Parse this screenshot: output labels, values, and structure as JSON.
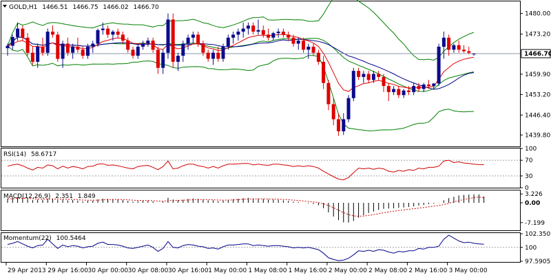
{
  "window": {
    "title": "GOLD,H1",
    "ohlc": [
      "1466.51",
      "1466.75",
      "1466.02",
      "1466.70"
    ]
  },
  "chart_data": [
    {
      "type": "candlestick",
      "panel": "price",
      "symbol": "GOLD",
      "timeframe": "H1",
      "ylim": [
        1436,
        1484
      ],
      "yticks": [
        "1480.00",
        "1473.20",
        "1466.70",
        "1459.90",
        "1453.20",
        "1446.40",
        "1439.80"
      ],
      "current_price": "1466.70",
      "colors": {
        "up": "#0b0b8c",
        "down": "#e00000",
        "ma_fast": "#e00000",
        "ma_slow": "#00008b",
        "bollinger": "#008000",
        "price_line": "#8a96a8"
      },
      "xticks": [
        "29 Apr 2013",
        "29 Apr 16:00",
        "30 Apr 00:00",
        "30 Apr 08:00",
        "30 Apr 16:00",
        "1 May 00:00",
        "1 May 08:00",
        "1 May 16:00",
        "2 May 00:00",
        "2 May 08:00",
        "2 May 16:00",
        "3 May 00:00"
      ],
      "candles": [
        [
          1468.5,
          1470,
          1466,
          1469.3
        ],
        [
          1469.3,
          1473,
          1468,
          1472.2
        ],
        [
          1472.2,
          1477,
          1471,
          1475
        ],
        [
          1475,
          1476,
          1471,
          1472
        ],
        [
          1472,
          1473.5,
          1466,
          1467
        ],
        [
          1467,
          1469,
          1463,
          1464
        ],
        [
          1464,
          1470,
          1462,
          1469
        ],
        [
          1469,
          1472,
          1466,
          1467
        ],
        [
          1467,
          1475,
          1466,
          1474
        ],
        [
          1474,
          1476,
          1472,
          1473
        ],
        [
          1473,
          1474,
          1464,
          1465
        ],
        [
          1465,
          1471,
          1462,
          1470
        ],
        [
          1470,
          1472,
          1466,
          1467
        ],
        [
          1467,
          1470,
          1465,
          1469
        ],
        [
          1469,
          1472,
          1467,
          1468
        ],
        [
          1468,
          1469,
          1465,
          1466
        ],
        [
          1466,
          1470,
          1465,
          1469
        ],
        [
          1469,
          1471,
          1467,
          1470
        ],
        [
          1470,
          1475,
          1469,
          1474.5
        ],
        [
          1474.5,
          1477,
          1473,
          1475
        ],
        [
          1475,
          1476,
          1472,
          1473
        ],
        [
          1473,
          1474.5,
          1471,
          1474
        ],
        [
          1474,
          1475,
          1472,
          1473
        ],
        [
          1473,
          1474,
          1470,
          1471
        ],
        [
          1471,
          1472,
          1467,
          1468
        ],
        [
          1468,
          1469,
          1465,
          1466
        ],
        [
          1466,
          1470,
          1465,
          1469
        ],
        [
          1469,
          1471,
          1468,
          1470
        ],
        [
          1470,
          1472,
          1469,
          1471
        ],
        [
          1471,
          1472,
          1467,
          1468
        ],
        [
          1468,
          1469,
          1460,
          1462
        ],
        [
          1462,
          1468,
          1460,
          1467
        ],
        [
          1467,
          1480,
          1465,
          1478
        ],
        [
          1478,
          1480,
          1462,
          1464
        ],
        [
          1464,
          1467,
          1461,
          1466
        ],
        [
          1466,
          1471,
          1464,
          1470
        ],
        [
          1470,
          1473,
          1468,
          1472
        ],
        [
          1472,
          1474,
          1470,
          1473
        ],
        [
          1473,
          1474,
          1469,
          1470
        ],
        [
          1470,
          1471,
          1466,
          1467
        ],
        [
          1467,
          1468,
          1464,
          1465
        ],
        [
          1465,
          1468,
          1463,
          1467
        ],
        [
          1467,
          1469,
          1464,
          1465
        ],
        [
          1465,
          1470,
          1464,
          1469
        ],
        [
          1469,
          1473,
          1468,
          1472
        ],
        [
          1472,
          1474,
          1470,
          1473
        ],
        [
          1473,
          1475,
          1471,
          1474
        ],
        [
          1474,
          1477,
          1472,
          1475
        ],
        [
          1475,
          1477,
          1473,
          1476
        ],
        [
          1476,
          1477,
          1473,
          1474
        ],
        [
          1474,
          1478,
          1473,
          1474.5
        ],
        [
          1474.5,
          1476,
          1472,
          1473
        ],
        [
          1473,
          1475,
          1471,
          1472
        ],
        [
          1472,
          1474,
          1471,
          1473.5
        ],
        [
          1473.5,
          1475,
          1472,
          1474
        ],
        [
          1474,
          1475,
          1472,
          1473
        ],
        [
          1473,
          1474,
          1471,
          1472
        ],
        [
          1472,
          1473,
          1469,
          1470
        ],
        [
          1470,
          1472,
          1468,
          1471
        ],
        [
          1471,
          1472,
          1467,
          1468
        ],
        [
          1468,
          1470,
          1465,
          1469
        ],
        [
          1469,
          1470,
          1466,
          1467
        ],
        [
          1467,
          1468,
          1463,
          1464
        ],
        [
          1464,
          1466,
          1455,
          1457
        ],
        [
          1457,
          1458,
          1448,
          1450
        ],
        [
          1450,
          1452,
          1443,
          1445
        ],
        [
          1445,
          1447,
          1439.5,
          1441
        ],
        [
          1441,
          1447,
          1439.8,
          1445
        ],
        [
          1445,
          1453,
          1444,
          1452
        ],
        [
          1452,
          1462,
          1451,
          1461
        ],
        [
          1461,
          1462,
          1458,
          1459
        ],
        [
          1459,
          1461,
          1457,
          1460
        ],
        [
          1460,
          1461,
          1457,
          1458
        ],
        [
          1458,
          1461,
          1457,
          1460
        ],
        [
          1460,
          1461,
          1458,
          1459
        ],
        [
          1459,
          1460,
          1454,
          1456
        ],
        [
          1456,
          1457,
          1451,
          1454
        ],
        [
          1454,
          1456,
          1453,
          1455
        ],
        [
          1455,
          1456,
          1452,
          1453
        ],
        [
          1453,
          1455,
          1452,
          1454.5
        ],
        [
          1454.5,
          1456,
          1453,
          1454
        ],
        [
          1454,
          1457,
          1453,
          1456
        ],
        [
          1456,
          1457,
          1454,
          1455
        ],
        [
          1455,
          1457,
          1454,
          1456.5
        ],
        [
          1456.5,
          1458,
          1455,
          1456
        ],
        [
          1456,
          1457,
          1455,
          1456.8
        ],
        [
          1456.8,
          1470,
          1456,
          1469
        ],
        [
          1469,
          1474,
          1465,
          1472
        ],
        [
          1472,
          1473,
          1466,
          1468
        ],
        [
          1468,
          1470,
          1467,
          1469.5
        ],
        [
          1469.5,
          1471,
          1467,
          1468
        ],
        [
          1468,
          1469.5,
          1467,
          1467.5
        ],
        [
          1467.5,
          1469,
          1466.5,
          1467
        ],
        [
          1466.51,
          1466.75,
          1466.02,
          1466.7
        ]
      ]
    },
    {
      "type": "line",
      "panel": "rsi",
      "title": "RSI(14)",
      "value": "58.6717",
      "ylim": [
        0,
        100
      ],
      "yticks": [
        "100",
        "70",
        "30",
        "0"
      ],
      "levels": [
        70,
        30
      ],
      "color": "#d00000",
      "values": [
        55,
        58,
        60,
        56,
        50,
        45,
        52,
        50,
        58,
        56,
        48,
        55,
        50,
        54,
        52,
        48,
        54,
        55,
        60,
        61,
        57,
        58,
        56,
        53,
        50,
        48,
        54,
        56,
        57,
        52,
        46,
        54,
        68,
        48,
        50,
        56,
        60,
        60,
        56,
        54,
        50,
        54,
        50,
        56,
        60,
        60,
        61,
        62,
        62,
        58,
        60,
        58,
        57,
        60,
        60,
        58,
        57,
        54,
        56,
        54,
        56,
        54,
        50,
        42,
        35,
        28,
        22,
        20,
        26,
        38,
        50,
        48,
        50,
        47,
        50,
        48,
        42,
        40,
        44,
        42,
        46,
        44,
        50,
        48,
        52,
        52,
        55,
        68,
        70,
        64,
        66,
        63,
        62,
        60,
        59,
        58.6717
      ]
    },
    {
      "type": "bar",
      "panel": "macd",
      "title": "MACD(12,26,9)",
      "values_label": [
        "2.351",
        "1.849"
      ],
      "ylim": [
        -10,
        4.5
      ],
      "yticks": [
        "3.226",
        "0.00",
        "-7.199"
      ],
      "colors": {
        "histogram": "#000000",
        "signal": "#d00000"
      },
      "histogram": [
        1.5,
        1.8,
        2,
        1.8,
        1.4,
        1,
        1.2,
        1.1,
        1.5,
        1.5,
        1,
        1.2,
        0.9,
        1,
        0.8,
        0.5,
        0.7,
        0.8,
        1.2,
        1.5,
        1.4,
        1.4,
        1.3,
        1,
        0.7,
        0.4,
        0.6,
        0.7,
        0.8,
        0.5,
        0,
        0.4,
        1.8,
        1.2,
        1,
        1.1,
        1.4,
        1.6,
        1.5,
        1.2,
        0.9,
        0.9,
        0.6,
        0.8,
        1.1,
        1.3,
        1.5,
        1.7,
        1.8,
        1.6,
        1.6,
        1.4,
        1.2,
        1.2,
        1.1,
        0.9,
        0.7,
        0.4,
        0.3,
        0,
        -0.2,
        -0.4,
        -0.9,
        -2,
        -3.5,
        -5,
        -6.3,
        -7.1,
        -7.2,
        -6.6,
        -5.4,
        -4.5,
        -3.7,
        -3.2,
        -2.6,
        -2.2,
        -2.1,
        -2,
        -1.8,
        -1.7,
        -1.5,
        -1.3,
        -1,
        -0.8,
        -0.5,
        -0.3,
        -0.1,
        0.9,
        1.7,
        2.2,
        2.7,
        2.9,
        3,
        3.1,
        3.1,
        2.35
      ],
      "signal": [
        1.4,
        1.5,
        1.6,
        1.7,
        1.6,
        1.5,
        1.4,
        1.35,
        1.38,
        1.4,
        1.35,
        1.3,
        1.25,
        1.2,
        1.12,
        1,
        0.95,
        0.92,
        0.98,
        1.08,
        1.15,
        1.2,
        1.22,
        1.18,
        1.08,
        0.95,
        0.88,
        0.85,
        0.84,
        0.78,
        0.62,
        0.58,
        0.8,
        0.88,
        0.9,
        0.94,
        1.02,
        1.12,
        1.2,
        1.2,
        1.14,
        1.1,
        1,
        0.98,
        1,
        1.05,
        1.14,
        1.26,
        1.36,
        1.4,
        1.44,
        1.43,
        1.39,
        1.35,
        1.3,
        1.22,
        1.12,
        0.98,
        0.84,
        0.67,
        0.5,
        0.32,
        0.08,
        -0.34,
        -0.97,
        -1.78,
        -2.68,
        -3.56,
        -4.29,
        -4.75,
        -4.88,
        -4.8,
        -4.58,
        -4.31,
        -3.97,
        -3.62,
        -3.32,
        -3.06,
        -2.8,
        -2.58,
        -2.36,
        -2.15,
        -1.92,
        -1.7,
        -1.46,
        -1.23,
        -1,
        -0.62,
        -0.16,
        0.31,
        0.79,
        1.21,
        1.57,
        1.88,
        2.12,
        1.849
      ]
    },
    {
      "type": "line",
      "panel": "momentum",
      "title": "Momentum(22)",
      "value": "100.5464",
      "ylim": [
        97.5905,
        102.3505
      ],
      "yticks": [
        "102.3505",
        "100",
        "97.5905"
      ],
      "level": 100,
      "color": "#00008b",
      "values": [
        100.5,
        100.7,
        101,
        100.6,
        100.2,
        99.9,
        100.3,
        100.4,
        101.4,
        100.6,
        99.8,
        100.4,
        100.1,
        100.3,
        100.2,
        99.9,
        100.1,
        100.2,
        100.7,
        100.9,
        100.5,
        100.5,
        100.4,
        100.2,
        99.9,
        99.8,
        100,
        100.2,
        100.4,
        100,
        99.3,
        99.8,
        101,
        100,
        99.9,
        100.3,
        100.5,
        100.4,
        100.2,
        100.1,
        99.8,
        99.9,
        99.7,
        100.1,
        100.4,
        100.4,
        100.5,
        100.6,
        100.6,
        100.3,
        100.4,
        100.3,
        100.2,
        100.3,
        100.3,
        100.2,
        100.1,
        99.9,
        100,
        99.9,
        100,
        99.8,
        99.6,
        99,
        98.2,
        97.9,
        97.7,
        97.8,
        98.1,
        98.7,
        99.4,
        99.3,
        99.5,
        99.3,
        99.6,
        99.5,
        99.2,
        99,
        99.3,
        99.2,
        99.4,
        99.4,
        99.8,
        99.7,
        100,
        100,
        100.2,
        101.4,
        102.1,
        101.6,
        101.1,
        100.8,
        100.9,
        100.7,
        100.6,
        100.5464
      ]
    }
  ]
}
